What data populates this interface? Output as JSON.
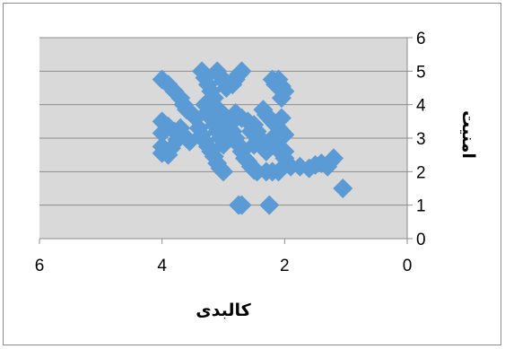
{
  "chart_data": {
    "type": "scatter",
    "title": "",
    "xlabel": "کالبدی",
    "ylabel": "امنیت",
    "x_reversed": true,
    "xlim": [
      0,
      6
    ],
    "ylim": [
      0,
      6
    ],
    "x_ticks": [
      "0",
      "2",
      "4",
      "6"
    ],
    "y_ticks": [
      "0",
      "1",
      "2",
      "3",
      "4",
      "5",
      "6"
    ],
    "grid": "horizontal",
    "legend": "none",
    "marker": "diamond",
    "colors": {
      "marker": "#5b9bd5",
      "plot_area": "#d9d9d9",
      "grid": "#8c8c8c",
      "axis": "#8c8c8c"
    },
    "series": [
      {
        "points": [
          [
            4.0,
            4.75
          ],
          [
            3.9,
            4.6
          ],
          [
            3.8,
            4.4
          ],
          [
            3.7,
            4.2
          ],
          [
            3.65,
            4.0
          ],
          [
            3.6,
            3.85
          ],
          [
            3.5,
            3.7
          ],
          [
            3.45,
            3.6
          ],
          [
            4.0,
            3.5
          ],
          [
            3.9,
            3.35
          ],
          [
            3.8,
            3.2
          ],
          [
            3.7,
            3.1
          ],
          [
            3.6,
            3.0
          ],
          [
            3.55,
            2.9
          ],
          [
            4.0,
            3.15
          ],
          [
            4.0,
            2.75
          ],
          [
            4.0,
            2.55
          ],
          [
            3.9,
            2.5
          ],
          [
            3.85,
            2.7
          ],
          [
            3.75,
            2.95
          ],
          [
            3.7,
            3.3
          ],
          [
            3.35,
            5.0
          ],
          [
            3.3,
            4.8
          ],
          [
            3.25,
            4.6
          ],
          [
            3.2,
            4.4
          ],
          [
            3.15,
            4.2
          ],
          [
            3.1,
            5.0
          ],
          [
            3.05,
            4.85
          ],
          [
            3.0,
            4.7
          ],
          [
            2.95,
            4.5
          ],
          [
            2.85,
            4.6
          ],
          [
            2.8,
            4.75
          ],
          [
            2.75,
            4.9
          ],
          [
            2.7,
            5.0
          ],
          [
            3.3,
            4.0
          ],
          [
            3.25,
            3.8
          ],
          [
            3.2,
            3.6
          ],
          [
            3.15,
            3.4
          ],
          [
            3.1,
            3.2
          ],
          [
            3.05,
            3.0
          ],
          [
            3.0,
            2.8
          ],
          [
            3.4,
            3.3
          ],
          [
            3.35,
            3.1
          ],
          [
            3.3,
            2.9
          ],
          [
            3.25,
            2.75
          ],
          [
            3.2,
            2.6
          ],
          [
            3.15,
            2.45
          ],
          [
            3.1,
            2.25
          ],
          [
            3.05,
            2.1
          ],
          [
            3.0,
            2.0
          ],
          [
            3.05,
            3.8
          ],
          [
            2.95,
            3.6
          ],
          [
            2.9,
            3.4
          ],
          [
            2.85,
            3.2
          ],
          [
            2.8,
            3.0
          ],
          [
            2.75,
            2.8
          ],
          [
            2.7,
            2.6
          ],
          [
            2.65,
            2.4
          ],
          [
            2.8,
            3.75
          ],
          [
            2.7,
            3.6
          ],
          [
            2.6,
            3.5
          ],
          [
            2.5,
            3.4
          ],
          [
            2.45,
            3.2
          ],
          [
            2.4,
            3.0
          ],
          [
            2.35,
            2.8
          ],
          [
            2.3,
            2.6
          ],
          [
            2.6,
            2.3
          ],
          [
            2.55,
            2.15
          ],
          [
            2.5,
            2.05
          ],
          [
            2.45,
            2.0
          ],
          [
            2.3,
            2.0
          ],
          [
            2.2,
            2.0
          ],
          [
            2.1,
            2.0
          ],
          [
            2.55,
            3.2
          ],
          [
            2.45,
            3.0
          ],
          [
            2.5,
            2.8
          ],
          [
            2.2,
            4.75
          ],
          [
            2.15,
            4.6
          ],
          [
            2.1,
            4.75
          ],
          [
            2.05,
            4.55
          ],
          [
            2.0,
            4.4
          ],
          [
            2.05,
            4.2
          ],
          [
            2.35,
            3.85
          ],
          [
            2.3,
            3.7
          ],
          [
            2.25,
            3.6
          ],
          [
            2.2,
            3.5
          ],
          [
            2.15,
            3.4
          ],
          [
            2.1,
            3.3
          ],
          [
            2.05,
            3.2
          ],
          [
            2.0,
            3.1
          ],
          [
            2.2,
            3.0
          ],
          [
            2.15,
            2.85
          ],
          [
            2.1,
            2.7
          ],
          [
            2.05,
            2.55
          ],
          [
            2.0,
            2.4
          ],
          [
            1.95,
            2.25
          ],
          [
            2.0,
            2.6
          ],
          [
            2.05,
            3.6
          ],
          [
            1.9,
            2.15
          ],
          [
            1.75,
            2.15
          ],
          [
            1.6,
            2.1
          ],
          [
            1.5,
            2.2
          ],
          [
            1.4,
            2.25
          ],
          [
            1.3,
            2.15
          ],
          [
            1.25,
            2.3
          ],
          [
            1.2,
            2.4
          ],
          [
            2.75,
            1.0
          ],
          [
            2.7,
            1.0
          ],
          [
            2.25,
            1.0
          ],
          [
            1.05,
            1.5
          ]
        ]
      }
    ]
  }
}
